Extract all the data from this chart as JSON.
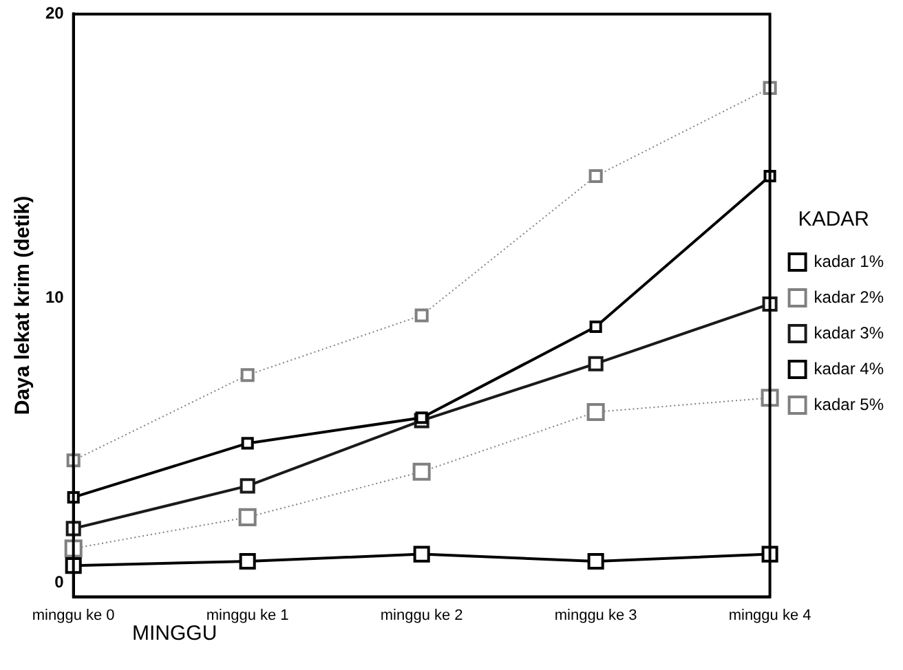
{
  "chart_data": {
    "type": "line",
    "xlabel": "MINGGU",
    "ylabel": "Daya lekat krim (detik)",
    "legend_title": "KADAR",
    "legend": "right",
    "grid": false,
    "marker": "square",
    "categories": [
      "minggu ke 0",
      "minggu ke 1",
      "minggu ke 2",
      "minggu ke 3",
      "minggu ke 4"
    ],
    "ylim": [
      -0.5,
      20
    ],
    "yticks": [
      0,
      10,
      20
    ],
    "series": [
      {
        "name": "kadar 1%",
        "color": "#000000",
        "line_style": "solid",
        "values": [
          3.0,
          4.9,
          5.8,
          9.0,
          14.3
        ]
      },
      {
        "name": "kadar 2%",
        "color": "#808080",
        "line_style": "dotted",
        "values": [
          4.3,
          7.3,
          9.4,
          14.3,
          17.4
        ]
      },
      {
        "name": "kadar 3%",
        "color": "#1a1a1a",
        "line_style": "solid",
        "values": [
          1.9,
          3.4,
          5.7,
          7.7,
          9.8
        ]
      },
      {
        "name": "kadar 4%",
        "color": "#000000",
        "line_style": "solid",
        "values": [
          0.6,
          0.75,
          1.0,
          0.75,
          1.0
        ]
      },
      {
        "name": "kadar 5%",
        "color": "#808080",
        "line_style": "dotted",
        "values": [
          1.2,
          2.3,
          3.9,
          6.0,
          6.5
        ]
      }
    ]
  }
}
